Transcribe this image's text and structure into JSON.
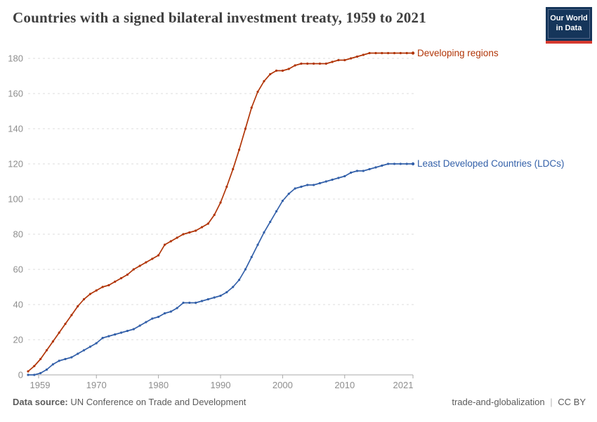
{
  "header": {
    "title": "Countries with a signed bilateral investment treaty, 1959 to 2021",
    "logo_line1": "Our World",
    "logo_line2": "in Data"
  },
  "chart_data": {
    "type": "line",
    "title": "Countries with a signed bilateral investment treaty, 1959 to 2021",
    "xlabel": "",
    "ylabel": "",
    "xlim": [
      1959,
      2021
    ],
    "ylim": [
      0,
      185
    ],
    "grid": "horizontal-dashed",
    "legend_position": "right-of-line-end",
    "xticks": [
      1959,
      1970,
      1980,
      1990,
      2000,
      2010,
      2021
    ],
    "yticks": [
      0,
      20,
      40,
      60,
      80,
      100,
      120,
      140,
      160,
      180
    ],
    "years": [
      1959,
      1960,
      1961,
      1962,
      1963,
      1964,
      1965,
      1966,
      1967,
      1968,
      1969,
      1970,
      1971,
      1972,
      1973,
      1974,
      1975,
      1976,
      1977,
      1978,
      1979,
      1980,
      1981,
      1982,
      1983,
      1984,
      1985,
      1986,
      1987,
      1988,
      1989,
      1990,
      1991,
      1992,
      1993,
      1994,
      1995,
      1996,
      1997,
      1998,
      1999,
      2000,
      2001,
      2002,
      2003,
      2004,
      2005,
      2006,
      2007,
      2008,
      2009,
      2010,
      2011,
      2012,
      2013,
      2014,
      2015,
      2016,
      2017,
      2018,
      2019,
      2020,
      2021
    ],
    "series": [
      {
        "name": "Developing regions",
        "color": "#b13507",
        "values": [
          2,
          5,
          9,
          14,
          19,
          24,
          29,
          34,
          39,
          43,
          46,
          48,
          50,
          51,
          53,
          55,
          57,
          60,
          62,
          64,
          66,
          68,
          74,
          76,
          78,
          80,
          81,
          82,
          84,
          86,
          91,
          98,
          107,
          117,
          128,
          140,
          152,
          161,
          167,
          171,
          173,
          173,
          174,
          176,
          177,
          177,
          177,
          177,
          177,
          178,
          179,
          179,
          180,
          181,
          182,
          183,
          183,
          183,
          183,
          183,
          183,
          183,
          183
        ]
      },
      {
        "name": "Least Developed Countries (LDCs)",
        "color": "#3360a9",
        "values": [
          0,
          0,
          1,
          3,
          6,
          8,
          9,
          10,
          12,
          14,
          16,
          18,
          21,
          22,
          23,
          24,
          25,
          26,
          28,
          30,
          32,
          33,
          35,
          36,
          38,
          41,
          41,
          41,
          42,
          43,
          44,
          45,
          47,
          50,
          54,
          60,
          67,
          74,
          81,
          87,
          93,
          99,
          103,
          106,
          107,
          108,
          108,
          109,
          110,
          111,
          112,
          113,
          115,
          116,
          116,
          117,
          118,
          119,
          120,
          120,
          120,
          120,
          120
        ]
      }
    ]
  },
  "footer": {
    "source_label": "Data source:",
    "source_text": "UN Conference on Trade and Development",
    "slug": "trade-and-globalization",
    "separator": "|",
    "license": "CC BY"
  },
  "colors": {
    "series_red": "#b13507",
    "series_blue": "#3360a9",
    "gridline": "#dcdcdc",
    "axis": "#a8a8a8",
    "tick_label": "#8e8e8e",
    "title_text": "#3e3e3e",
    "footer_text": "#5b5b5b",
    "logo_background": "#15355a",
    "logo_strip": "#d6392f"
  }
}
